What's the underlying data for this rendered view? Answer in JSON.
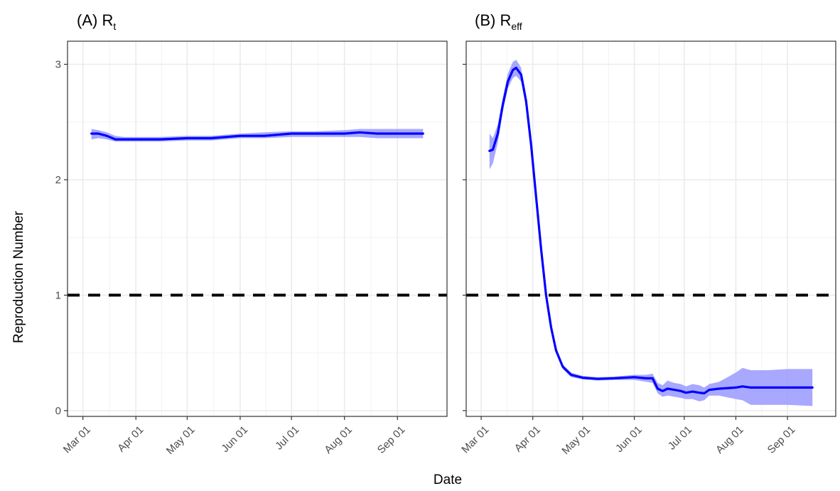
{
  "chart_data": [
    {
      "type": "line",
      "title": "(A) R",
      "title_subscript": "t",
      "ylabel": "Reproduction Number",
      "xlabel": "Date",
      "ylim": [
        -0.05,
        3.2
      ],
      "xlim": [
        "2020-02-21",
        "2020-09-30"
      ],
      "yticks": [
        0,
        1,
        2,
        3
      ],
      "xticks": [
        {
          "date": "2020-03-01",
          "label": "Mar 01"
        },
        {
          "date": "2020-04-01",
          "label": "Apr 01"
        },
        {
          "date": "2020-05-01",
          "label": "May 01"
        },
        {
          "date": "2020-06-01",
          "label": "Jun 01"
        },
        {
          "date": "2020-07-01",
          "label": "Jul 01"
        },
        {
          "date": "2020-08-01",
          "label": "Aug 01"
        },
        {
          "date": "2020-09-01",
          "label": "Sep 01"
        }
      ],
      "reference_line": {
        "y": 1,
        "style": "dashed",
        "color": "#000000"
      },
      "grid": true,
      "series": [
        {
          "color": "#0000ff",
          "ribbon_color": "#9999ff",
          "points": [
            {
              "x": "2020-03-06",
              "y": 2.4,
              "lo": 2.35,
              "hi": 2.44
            },
            {
              "x": "2020-03-10",
              "y": 2.4,
              "lo": 2.36,
              "hi": 2.43
            },
            {
              "x": "2020-03-15",
              "y": 2.38,
              "lo": 2.35,
              "hi": 2.41
            },
            {
              "x": "2020-03-20",
              "y": 2.35,
              "lo": 2.33,
              "hi": 2.38
            },
            {
              "x": "2020-03-25",
              "y": 2.35,
              "lo": 2.33,
              "hi": 2.37
            },
            {
              "x": "2020-04-01",
              "y": 2.35,
              "lo": 2.33,
              "hi": 2.37
            },
            {
              "x": "2020-04-15",
              "y": 2.35,
              "lo": 2.33,
              "hi": 2.37
            },
            {
              "x": "2020-05-01",
              "y": 2.36,
              "lo": 2.34,
              "hi": 2.38
            },
            {
              "x": "2020-05-15",
              "y": 2.36,
              "lo": 2.34,
              "hi": 2.38
            },
            {
              "x": "2020-06-01",
              "y": 2.38,
              "lo": 2.36,
              "hi": 2.4
            },
            {
              "x": "2020-06-15",
              "y": 2.38,
              "lo": 2.36,
              "hi": 2.41
            },
            {
              "x": "2020-07-01",
              "y": 2.4,
              "lo": 2.37,
              "hi": 2.42
            },
            {
              "x": "2020-07-15",
              "y": 2.4,
              "lo": 2.37,
              "hi": 2.42
            },
            {
              "x": "2020-08-01",
              "y": 2.4,
              "lo": 2.37,
              "hi": 2.43
            },
            {
              "x": "2020-08-10",
              "y": 2.41,
              "lo": 2.37,
              "hi": 2.44
            },
            {
              "x": "2020-08-20",
              "y": 2.4,
              "lo": 2.36,
              "hi": 2.44
            },
            {
              "x": "2020-09-01",
              "y": 2.4,
              "lo": 2.36,
              "hi": 2.44
            },
            {
              "x": "2020-09-16",
              "y": 2.4,
              "lo": 2.36,
              "hi": 2.44
            }
          ]
        }
      ]
    },
    {
      "type": "line",
      "title": "(B) R",
      "title_subscript": "eff",
      "xlabel": "Date",
      "ylim": [
        -0.05,
        3.2
      ],
      "xlim": [
        "2020-02-21",
        "2020-09-30"
      ],
      "yticks": [
        0,
        1,
        2,
        3
      ],
      "xticks": [
        {
          "date": "2020-03-01",
          "label": "Mar 01"
        },
        {
          "date": "2020-04-01",
          "label": "Apr 01"
        },
        {
          "date": "2020-05-01",
          "label": "May 01"
        },
        {
          "date": "2020-06-01",
          "label": "Jun 01"
        },
        {
          "date": "2020-07-01",
          "label": "Jul 01"
        },
        {
          "date": "2020-08-01",
          "label": "Aug 01"
        },
        {
          "date": "2020-09-01",
          "label": "Sep 01"
        }
      ],
      "reference_line": {
        "y": 1,
        "style": "dashed",
        "color": "#000000"
      },
      "grid": true,
      "series": [
        {
          "color": "#0000ff",
          "ribbon_color": "#9999ff",
          "points": [
            {
              "x": "2020-03-06",
              "y": 2.25,
              "lo": 2.09,
              "hi": 2.4
            },
            {
              "x": "2020-03-08",
              "y": 2.26,
              "lo": 2.14,
              "hi": 2.36
            },
            {
              "x": "2020-03-11",
              "y": 2.4,
              "lo": 2.32,
              "hi": 2.48
            },
            {
              "x": "2020-03-14",
              "y": 2.65,
              "lo": 2.59,
              "hi": 2.71
            },
            {
              "x": "2020-03-17",
              "y": 2.85,
              "lo": 2.79,
              "hi": 2.92
            },
            {
              "x": "2020-03-20",
              "y": 2.95,
              "lo": 2.88,
              "hi": 3.02
            },
            {
              "x": "2020-03-22",
              "y": 2.97,
              "lo": 2.9,
              "hi": 3.04
            },
            {
              "x": "2020-03-25",
              "y": 2.91,
              "lo": 2.85,
              "hi": 2.97
            },
            {
              "x": "2020-03-28",
              "y": 2.68,
              "lo": 2.63,
              "hi": 2.73
            },
            {
              "x": "2020-03-31",
              "y": 2.3,
              "lo": 2.26,
              "hi": 2.34
            },
            {
              "x": "2020-04-03",
              "y": 1.85,
              "lo": 1.81,
              "hi": 1.89
            },
            {
              "x": "2020-04-06",
              "y": 1.4,
              "lo": 1.37,
              "hi": 1.43
            },
            {
              "x": "2020-04-09",
              "y": 1.0,
              "lo": 0.97,
              "hi": 1.03
            },
            {
              "x": "2020-04-12",
              "y": 0.72,
              "lo": 0.7,
              "hi": 0.75
            },
            {
              "x": "2020-04-15",
              "y": 0.52,
              "lo": 0.5,
              "hi": 0.55
            },
            {
              "x": "2020-04-19",
              "y": 0.38,
              "lo": 0.36,
              "hi": 0.4
            },
            {
              "x": "2020-04-24",
              "y": 0.31,
              "lo": 0.29,
              "hi": 0.33
            },
            {
              "x": "2020-05-01",
              "y": 0.285,
              "lo": 0.27,
              "hi": 0.3
            },
            {
              "x": "2020-05-10",
              "y": 0.275,
              "lo": 0.26,
              "hi": 0.29
            },
            {
              "x": "2020-05-20",
              "y": 0.28,
              "lo": 0.265,
              "hi": 0.295
            },
            {
              "x": "2020-06-01",
              "y": 0.29,
              "lo": 0.265,
              "hi": 0.31
            },
            {
              "x": "2020-06-08",
              "y": 0.28,
              "lo": 0.25,
              "hi": 0.31
            },
            {
              "x": "2020-06-12",
              "y": 0.28,
              "lo": 0.24,
              "hi": 0.32
            },
            {
              "x": "2020-06-15",
              "y": 0.19,
              "lo": 0.15,
              "hi": 0.24
            },
            {
              "x": "2020-06-18",
              "y": 0.17,
              "lo": 0.12,
              "hi": 0.22
            },
            {
              "x": "2020-06-21",
              "y": 0.19,
              "lo": 0.13,
              "hi": 0.26
            },
            {
              "x": "2020-06-25",
              "y": 0.18,
              "lo": 0.12,
              "hi": 0.24
            },
            {
              "x": "2020-06-29",
              "y": 0.17,
              "lo": 0.11,
              "hi": 0.23
            },
            {
              "x": "2020-07-02",
              "y": 0.155,
              "lo": 0.1,
              "hi": 0.21
            },
            {
              "x": "2020-07-06",
              "y": 0.165,
              "lo": 0.1,
              "hi": 0.23
            },
            {
              "x": "2020-07-10",
              "y": 0.155,
              "lo": 0.08,
              "hi": 0.22
            },
            {
              "x": "2020-07-13",
              "y": 0.15,
              "lo": 0.09,
              "hi": 0.2
            },
            {
              "x": "2020-07-16",
              "y": 0.18,
              "lo": 0.13,
              "hi": 0.23
            },
            {
              "x": "2020-07-22",
              "y": 0.19,
              "lo": 0.13,
              "hi": 0.25
            },
            {
              "x": "2020-08-01",
              "y": 0.2,
              "lo": 0.1,
              "hi": 0.33
            },
            {
              "x": "2020-08-05",
              "y": 0.21,
              "lo": 0.09,
              "hi": 0.37
            },
            {
              "x": "2020-08-10",
              "y": 0.2,
              "lo": 0.05,
              "hi": 0.35
            },
            {
              "x": "2020-08-20",
              "y": 0.2,
              "lo": 0.05,
              "hi": 0.35
            },
            {
              "x": "2020-09-01",
              "y": 0.2,
              "lo": 0.05,
              "hi": 0.36
            },
            {
              "x": "2020-09-16",
              "y": 0.2,
              "lo": 0.04,
              "hi": 0.36
            }
          ]
        }
      ]
    }
  ]
}
